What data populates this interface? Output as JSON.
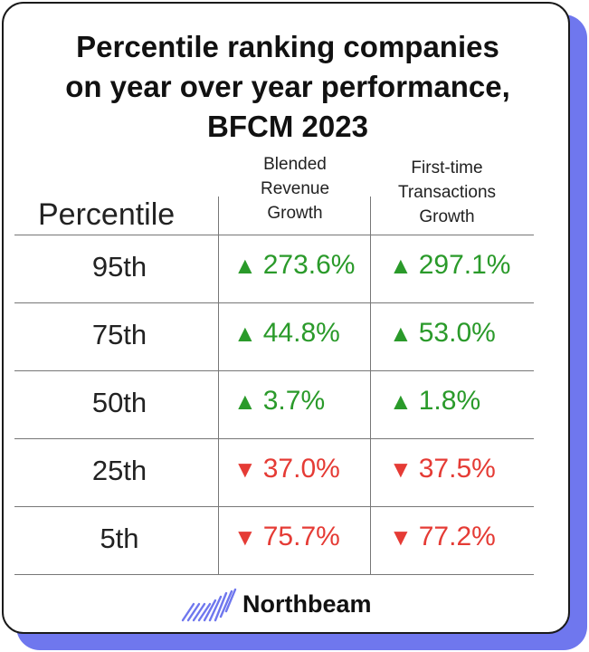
{
  "title_lines": [
    "Percentile ranking companies",
    "on year over year performance,",
    "BFCM 2023"
  ],
  "headers": {
    "percentile": "Percentile",
    "col1_lines": [
      "Blended",
      "Revenue",
      "Growth"
    ],
    "col2_lines": [
      "First-time",
      "Transactions",
      "Growth"
    ]
  },
  "rows": [
    {
      "label": "95th",
      "blended": {
        "arrow": "▲",
        "text": "273.6%",
        "dir": "up"
      },
      "first_time": {
        "arrow": "▲",
        "text": "297.1%",
        "dir": "up"
      }
    },
    {
      "label": "75th",
      "blended": {
        "arrow": "▲",
        "text": "44.8%",
        "dir": "up"
      },
      "first_time": {
        "arrow": "▲",
        "text": "53.0%",
        "dir": "up"
      }
    },
    {
      "label": "50th",
      "blended": {
        "arrow": "▲",
        "text": "3.7%",
        "dir": "up"
      },
      "first_time": {
        "arrow": "▲",
        "text": "1.8%",
        "dir": "up"
      }
    },
    {
      "label": "25th",
      "blended": {
        "arrow": "▼",
        "text": "37.0%",
        "dir": "down"
      },
      "first_time": {
        "arrow": "▼",
        "text": "37.5%",
        "dir": "down"
      }
    },
    {
      "label": "5th",
      "blended": {
        "arrow": "▼",
        "text": "75.7%",
        "dir": "down"
      },
      "first_time": {
        "arrow": "▼",
        "text": "77.2%",
        "dir": "down"
      }
    }
  ],
  "brand": {
    "name": "Northbeam",
    "logo_icon": "northbeam-logo-icon"
  },
  "colors": {
    "up": "#2a9a2a",
    "down": "#e53b35",
    "accent": "#6f77ee"
  },
  "chart_data": {
    "type": "table",
    "title": "Percentile ranking companies on year over year performance, BFCM 2023",
    "columns": [
      "Percentile",
      "Blended Revenue Growth",
      "First-time Transactions Growth"
    ],
    "rows": [
      [
        "95th",
        273.6,
        297.1
      ],
      [
        "75th",
        44.8,
        53.0
      ],
      [
        "50th",
        3.7,
        1.8
      ],
      [
        "25th",
        -37.0,
        -37.5
      ],
      [
        "5th",
        -75.7,
        -77.2
      ]
    ],
    "unit": "%"
  }
}
